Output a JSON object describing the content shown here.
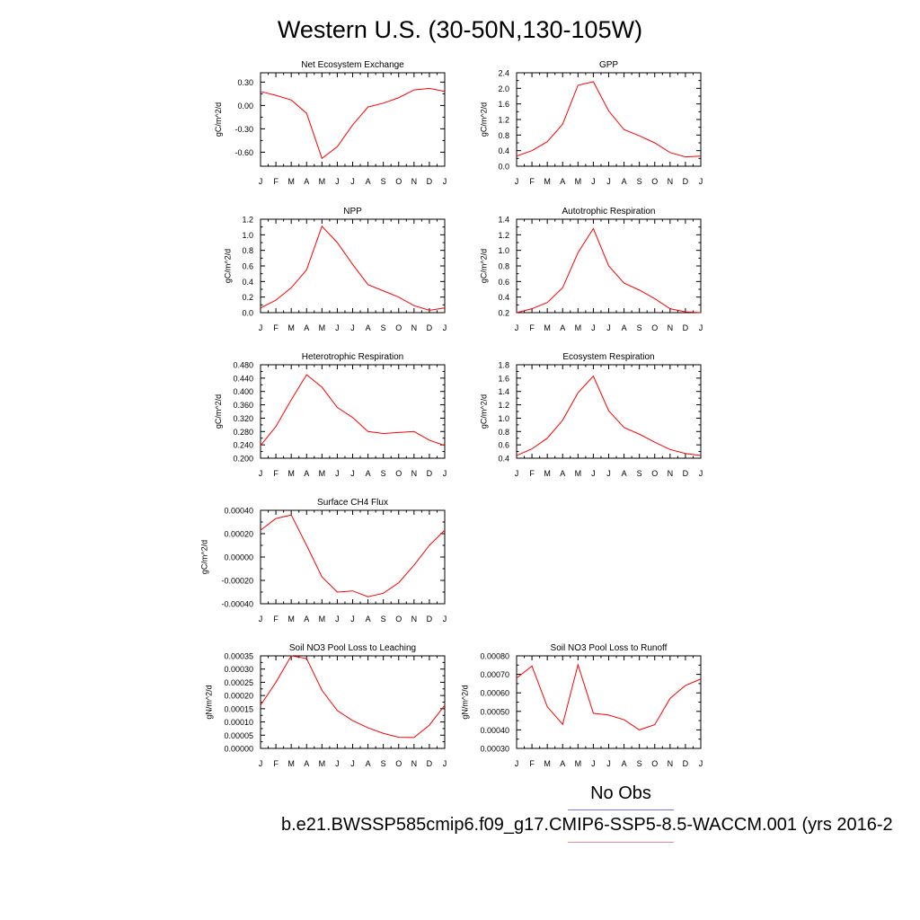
{
  "title": "Western U.S. (30-50N,130-105W)",
  "legend": {
    "obs_label": "No Obs",
    "case_label": "b.e21.BWSSP585cmip6.f09_g17.CMIP6-SSP5-8.5-WACCM.001 (yrs 2016-2",
    "obs_color": "#7b7bf0",
    "case_color": "#f08a8a"
  },
  "chart_data": [
    {
      "type": "line",
      "title": "Net Ecosystem Exchange",
      "ylabel": "gC/m^2/d",
      "xlabel": "",
      "categories": [
        "J",
        "F",
        "M",
        "A",
        "M",
        "J",
        "J",
        "A",
        "S",
        "O",
        "N",
        "D",
        "J"
      ],
      "ylim": [
        -0.78,
        0.42
      ],
      "yticks": [
        -0.6,
        -0.3,
        0.0,
        0.3
      ],
      "ytick_labels": [
        "-0.60",
        "-0.30",
        "0.00",
        "0.30"
      ],
      "series": [
        {
          "values": [
            0.18,
            0.13,
            0.07,
            -0.1,
            -0.68,
            -0.53,
            -0.25,
            -0.02,
            0.03,
            0.1,
            0.2,
            0.22,
            0.18
          ],
          "color": "#ff0000"
        }
      ]
    },
    {
      "type": "line",
      "title": "GPP",
      "ylabel": "gC/m^2/d",
      "xlabel": "",
      "categories": [
        "J",
        "F",
        "M",
        "A",
        "M",
        "J",
        "J",
        "A",
        "S",
        "O",
        "N",
        "D",
        "J"
      ],
      "ylim": [
        0.0,
        2.4
      ],
      "yticks": [
        0.0,
        0.4,
        0.8,
        1.2,
        1.6,
        2.0,
        2.4
      ],
      "ytick_labels": [
        "0.0",
        "0.4",
        "0.8",
        "1.2",
        "1.6",
        "2.0",
        "2.4"
      ],
      "series": [
        {
          "values": [
            0.26,
            0.4,
            0.63,
            1.08,
            2.08,
            2.17,
            1.42,
            0.94,
            0.78,
            0.6,
            0.35,
            0.24,
            0.26
          ],
          "color": "#ff0000"
        }
      ]
    },
    {
      "type": "line",
      "title": "NPP",
      "ylabel": "gC/m^2/d",
      "xlabel": "",
      "categories": [
        "J",
        "F",
        "M",
        "A",
        "M",
        "J",
        "J",
        "A",
        "S",
        "O",
        "N",
        "D",
        "J"
      ],
      "ylim": [
        0.0,
        1.2
      ],
      "yticks": [
        0.0,
        0.2,
        0.4,
        0.6,
        0.8,
        1.0,
        1.2
      ],
      "ytick_labels": [
        "0.0",
        "0.2",
        "0.4",
        "0.6",
        "0.8",
        "1.0",
        "1.2"
      ],
      "series": [
        {
          "values": [
            0.06,
            0.16,
            0.32,
            0.55,
            1.11,
            0.9,
            0.62,
            0.36,
            0.28,
            0.2,
            0.09,
            0.03,
            0.06
          ],
          "color": "#ff0000"
        }
      ]
    },
    {
      "type": "line",
      "title": "Autotrophic Respiration",
      "ylabel": "gC/m^2/d",
      "xlabel": "",
      "categories": [
        "J",
        "F",
        "M",
        "A",
        "M",
        "J",
        "J",
        "A",
        "S",
        "O",
        "N",
        "D",
        "J"
      ],
      "ylim": [
        0.2,
        1.4
      ],
      "yticks": [
        0.2,
        0.4,
        0.6,
        0.8,
        1.0,
        1.2,
        1.4
      ],
      "ytick_labels": [
        "0.2",
        "0.4",
        "0.6",
        "0.8",
        "1.0",
        "1.2",
        "1.4"
      ],
      "series": [
        {
          "values": [
            0.2,
            0.25,
            0.33,
            0.52,
            0.97,
            1.28,
            0.8,
            0.58,
            0.49,
            0.38,
            0.25,
            0.21,
            0.2
          ],
          "color": "#ff0000"
        }
      ]
    },
    {
      "type": "line",
      "title": "Heterotrophic Respiration",
      "ylabel": "gC/m^2/d",
      "xlabel": "",
      "categories": [
        "J",
        "F",
        "M",
        "A",
        "M",
        "J",
        "J",
        "A",
        "S",
        "O",
        "N",
        "D",
        "J"
      ],
      "ylim": [
        0.2,
        0.48
      ],
      "yticks": [
        0.2,
        0.24,
        0.28,
        0.32,
        0.36,
        0.4,
        0.44,
        0.48
      ],
      "ytick_labels": [
        "0.200",
        "0.240",
        "0.280",
        "0.320",
        "0.360",
        "0.400",
        "0.440",
        "0.480"
      ],
      "series": [
        {
          "values": [
            0.238,
            0.295,
            0.375,
            0.45,
            0.413,
            0.352,
            0.322,
            0.28,
            0.274,
            0.277,
            0.28,
            0.254,
            0.238
          ],
          "color": "#ff0000"
        }
      ]
    },
    {
      "type": "line",
      "title": "Ecosystem Respiration",
      "ylabel": "gC/m^2/d",
      "xlabel": "",
      "categories": [
        "J",
        "F",
        "M",
        "A",
        "M",
        "J",
        "J",
        "A",
        "S",
        "O",
        "N",
        "D",
        "J"
      ],
      "ylim": [
        0.4,
        1.8
      ],
      "yticks": [
        0.4,
        0.6,
        0.8,
        1.0,
        1.2,
        1.4,
        1.6,
        1.8
      ],
      "ytick_labels": [
        "0.4",
        "0.6",
        "0.8",
        "1.0",
        "1.2",
        "1.4",
        "1.6",
        "1.8"
      ],
      "series": [
        {
          "values": [
            0.44,
            0.54,
            0.7,
            0.97,
            1.38,
            1.63,
            1.11,
            0.86,
            0.76,
            0.64,
            0.53,
            0.47,
            0.44
          ],
          "color": "#ff0000"
        }
      ]
    },
    {
      "type": "line",
      "title": "Surface CH4 Flux",
      "ylabel": "gC/m^2/d",
      "xlabel": "",
      "categories": [
        "J",
        "F",
        "M",
        "A",
        "M",
        "J",
        "J",
        "A",
        "S",
        "O",
        "N",
        "D",
        "J"
      ],
      "ylim": [
        -0.0004,
        0.0004
      ],
      "yticks": [
        -0.0004,
        -0.0002,
        0.0,
        0.0002,
        0.0004
      ],
      "ytick_labels": [
        "-0.00040",
        "-0.00020",
        "0.00000",
        "0.00020",
        "0.00040"
      ],
      "series": [
        {
          "values": [
            0.00023,
            0.00033,
            0.00036,
            0.0001,
            -0.00017,
            -0.0003,
            -0.00029,
            -0.00034,
            -0.00031,
            -0.00022,
            -7e-05,
            0.0001,
            0.00023
          ],
          "color": "#ff0000"
        }
      ]
    },
    {
      "type": "line",
      "title": "Soil NO3 Pool Loss to Leaching",
      "ylabel": "gN/m^2/d",
      "xlabel": "",
      "categories": [
        "J",
        "F",
        "M",
        "A",
        "M",
        "J",
        "J",
        "A",
        "S",
        "O",
        "N",
        "D",
        "J"
      ],
      "ylim": [
        0.0,
        0.00035
      ],
      "yticks": [
        0.0,
        5e-05,
        0.0001,
        0.00015,
        0.0002,
        0.00025,
        0.0003,
        0.00035
      ],
      "ytick_labels": [
        "0.00000",
        "0.00005",
        "0.00010",
        "0.00015",
        "0.00020",
        "0.00025",
        "0.00030",
        "0.00035"
      ],
      "series": [
        {
          "values": [
            0.000163,
            0.00025,
            0.00035,
            0.00034,
            0.00022,
            0.000143,
            0.000105,
            7.8e-05,
            5.7e-05,
            4.2e-05,
            4.1e-05,
            8.8e-05,
            0.000163
          ],
          "color": "#ff0000"
        }
      ]
    },
    {
      "type": "line",
      "title": "Soil NO3 Pool Loss to Runoff",
      "ylabel": "gN/m^2/d",
      "xlabel": "",
      "categories": [
        "J",
        "F",
        "M",
        "A",
        "M",
        "J",
        "J",
        "A",
        "S",
        "O",
        "N",
        "D",
        "J"
      ],
      "ylim": [
        0.0003,
        0.0008
      ],
      "yticks": [
        0.0003,
        0.0004,
        0.0005,
        0.0006,
        0.0007,
        0.0008
      ],
      "ytick_labels": [
        "0.00030",
        "0.00040",
        "0.00050",
        "0.00060",
        "0.00070",
        "0.00080"
      ],
      "series": [
        {
          "values": [
            0.00068,
            0.000745,
            0.000525,
            0.00043,
            0.000752,
            0.00049,
            0.00048,
            0.000455,
            0.0004,
            0.000428,
            0.00057,
            0.00064,
            0.000675
          ],
          "color": "#ff0000"
        }
      ]
    }
  ]
}
